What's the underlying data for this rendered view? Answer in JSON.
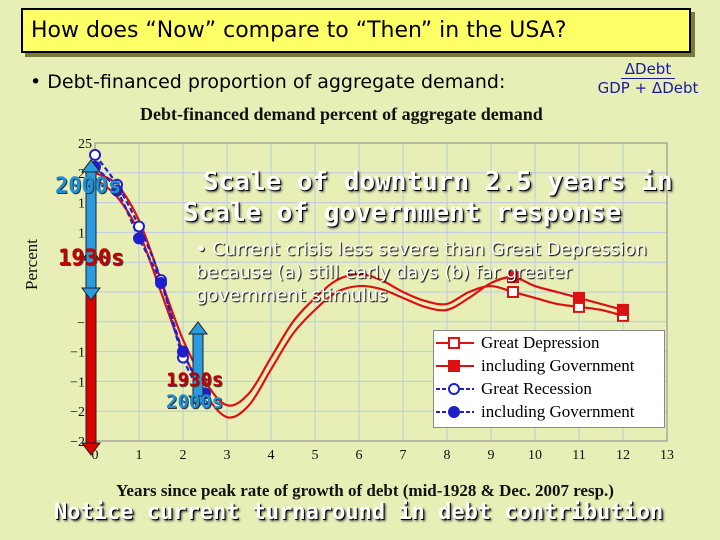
{
  "slide": {
    "title": "How does “Now” compare to “Then” in the USA?",
    "bullet_main": "• Debt-financed proportion of aggregate demand:",
    "formula_numerator": "ΔDebt",
    "formula_denominator": "GDP + ΔDebt",
    "overlay_line1": "Scale of downturn 2.5 years in",
    "overlay_line2": "Scale of government response",
    "bullet_sub": "• Current crisis less severe than Great Depression because (a) still early days (b) far greater government stimulus",
    "tag_top_2000s": "2000s",
    "tag_top_1930s": "1930s",
    "tag_bottom_1930s": "1930s",
    "tag_bottom_2000s": "2000s",
    "footer": "Notice current turnaround in debt contribution"
  },
  "colors": {
    "background": "#e7eeb6",
    "title_box": "#ffff66",
    "red_series": "#dd1111",
    "blue_series": "#1f1fcc",
    "arrow_red": "#dd0000",
    "arrow_blue": "#2a9be0"
  },
  "chart_data": {
    "type": "line",
    "title": "Debt-financed demand percent of aggregate demand",
    "xlabel": "Years since peak rate of growth of debt (mid-1928 & Dec. 2007 resp.)",
    "ylabel": "Percent",
    "xlim": [
      0,
      13
    ],
    "ylim": [
      -25,
      25
    ],
    "xticks": [
      0,
      1,
      2,
      3,
      4,
      5,
      6,
      7,
      8,
      9,
      10,
      11,
      12,
      13
    ],
    "yticks": [
      25,
      20,
      15,
      10,
      5,
      0,
      -5,
      -10,
      -15,
      -20,
      -25
    ],
    "ytick_labels": [
      "25",
      "20",
      "15",
      "10",
      "5",
      "0",
      "−5",
      "−10",
      "−15",
      "−20",
      "−25"
    ],
    "grid": true,
    "legend_position": "bottom-right",
    "series": [
      {
        "name": "Great Depression",
        "color": "#dd1111",
        "marker": "open-square",
        "x": [
          0,
          0.5,
          1,
          1.5,
          2,
          2.5,
          3,
          3.5,
          4,
          4.5,
          5,
          5.5,
          6,
          6.5,
          7,
          7.5,
          8,
          8.5,
          9,
          9.5,
          10,
          10.5,
          11,
          11.5,
          12
        ],
        "y": [
          20,
          18,
          12,
          2,
          -8,
          -15,
          -19,
          -17,
          -11,
          -5,
          -1,
          2,
          3,
          2,
          0,
          -1.5,
          -2,
          0,
          1,
          0,
          -1,
          -2,
          -2.5,
          -3,
          -4
        ],
        "markers_x": [
          9.5,
          11,
          12
        ],
        "markers_y": [
          0,
          -2.5,
          -4
        ]
      },
      {
        "name": "including Government",
        "color": "#dd1111",
        "marker": "filled-square",
        "x": [
          0,
          0.5,
          1,
          1.5,
          2,
          2.5,
          3,
          3.5,
          4,
          4.5,
          5,
          5.5,
          6,
          6.5,
          7,
          7.5,
          8,
          8.5,
          9,
          9.5,
          10,
          10.5,
          11,
          11.5,
          12
        ],
        "y": [
          19,
          16,
          10,
          0,
          -10,
          -17,
          -21,
          -19,
          -13,
          -7,
          -3,
          0,
          1,
          0.5,
          -1,
          -2.5,
          -3,
          -1,
          1.5,
          2.5,
          1,
          0,
          -1,
          -2,
          -3
        ],
        "markers_x": [
          9.5,
          11,
          12
        ],
        "markers_y": [
          2.5,
          -1,
          -3
        ]
      },
      {
        "name": "Great Recession",
        "color": "#1f1fcc",
        "marker": "open-circle",
        "x": [
          0,
          0.5,
          1,
          1.5,
          2,
          2.5
        ],
        "y": [
          23,
          18,
          11,
          2,
          -11,
          -18
        ]
      },
      {
        "name": "including Government",
        "color": "#1f1fcc",
        "marker": "filled-circle",
        "x": [
          0,
          0.5,
          1,
          1.5,
          2,
          2.5
        ],
        "y": [
          21,
          17,
          9,
          1.5,
          -10,
          -17
        ]
      }
    ]
  }
}
